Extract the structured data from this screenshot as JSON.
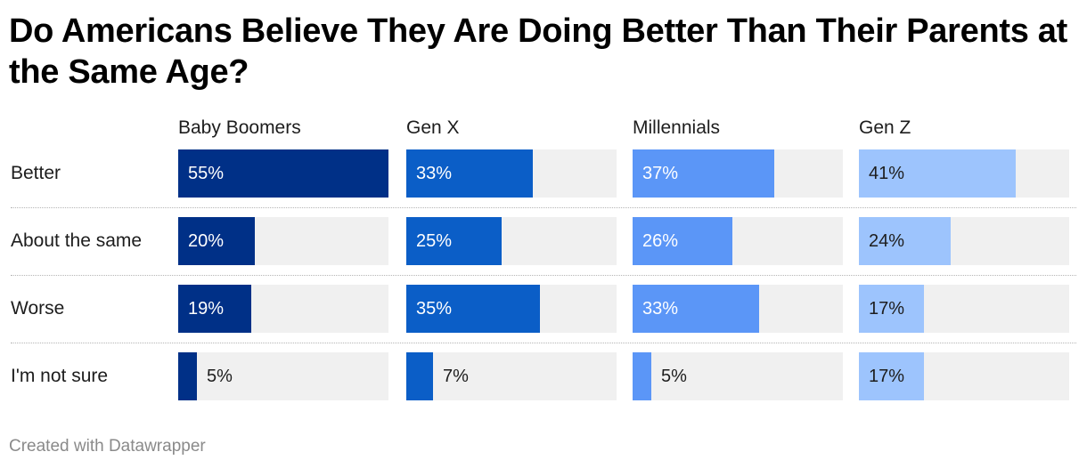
{
  "title": "Do Americans Believe They Are Doing Better Than Their Parents at the Same Age?",
  "footer": "Created with Datawrapper",
  "chart_data": {
    "type": "bar",
    "orientation": "horizontal",
    "layout": "small-multiples",
    "categories": [
      "Better",
      "About the same",
      "Worse",
      "I'm not sure"
    ],
    "series": [
      {
        "name": "Baby Boomers",
        "values": [
          55,
          20,
          19,
          5
        ],
        "labels": [
          "55%",
          "20%",
          "19%",
          "5%"
        ],
        "color": "#003087"
      },
      {
        "name": "Gen X",
        "values": [
          33,
          25,
          35,
          7
        ],
        "labels": [
          "33%",
          "25%",
          "35%",
          "7%"
        ],
        "color": "#0b5ec7"
      },
      {
        "name": "Millennials",
        "values": [
          37,
          26,
          33,
          5
        ],
        "labels": [
          "37%",
          "26%",
          "33%",
          "5%"
        ],
        "color": "#5b96f7"
      },
      {
        "name": "Gen Z",
        "values": [
          41,
          24,
          17,
          17
        ],
        "labels": [
          "41%",
          "24%",
          "17%",
          "17%"
        ],
        "color": "#9dc4fd"
      }
    ],
    "xlim": [
      0,
      55
    ],
    "unit": "%"
  }
}
